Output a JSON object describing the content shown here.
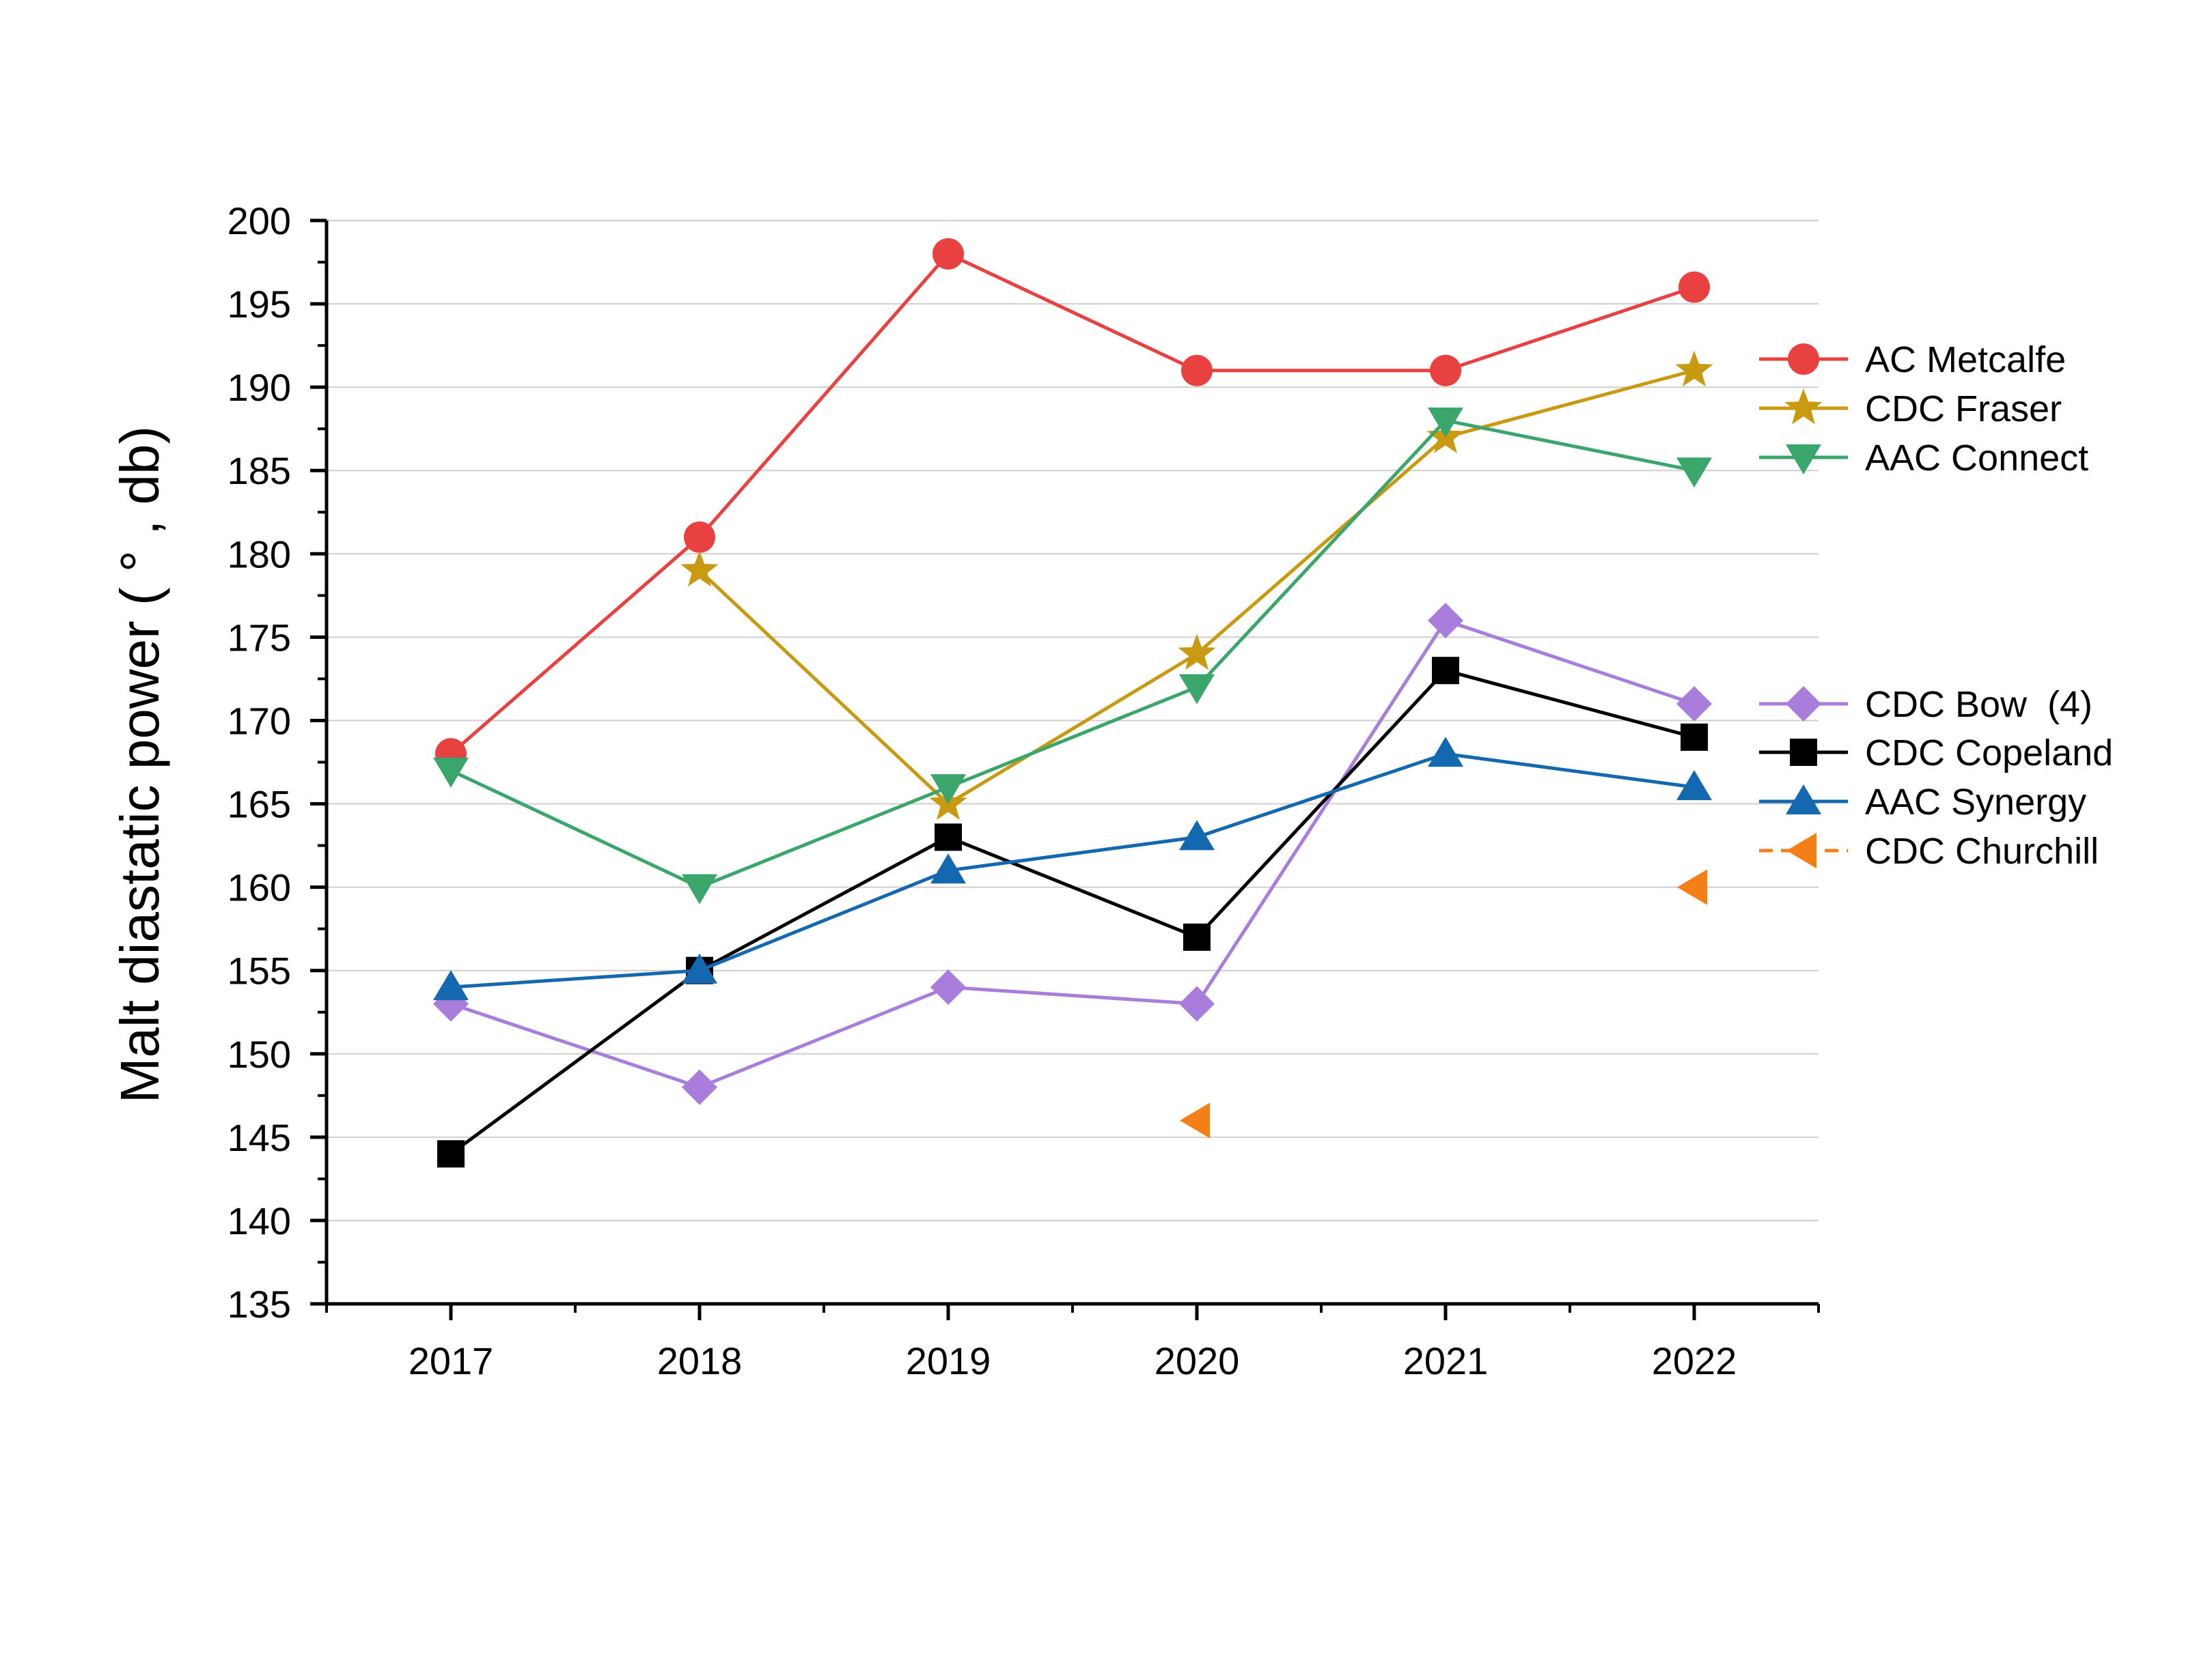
{
  "chart_data": {
    "type": "line",
    "title": "",
    "xlabel": "",
    "ylabel": "Malt diastatic power ( ° , db)",
    "categories": [
      "2017",
      "2018",
      "2019",
      "2020",
      "2021",
      "2022"
    ],
    "ylim": [
      135,
      200
    ],
    "yticks": [
      135,
      140,
      145,
      150,
      155,
      160,
      165,
      170,
      175,
      180,
      185,
      190,
      195,
      200
    ],
    "grid": "horizontal",
    "legend_position": "right",
    "series": [
      {
        "name": "AC Metcalfe",
        "color": "#e8413f",
        "marker": "circle",
        "line": "solid",
        "values": [
          168,
          181,
          198,
          191,
          191,
          196
        ]
      },
      {
        "name": "CDC Fraser",
        "color": "#c9990f",
        "marker": "star",
        "line": "solid",
        "values": [
          null,
          179,
          165,
          174,
          187,
          191
        ]
      },
      {
        "name": "AAC Connect",
        "color": "#3aa66b",
        "marker": "triangle-down",
        "line": "solid",
        "values": [
          167,
          160,
          166,
          172,
          188,
          185
        ]
      },
      {
        "name": "CDC Bow  (4)",
        "color": "#a97ddb",
        "marker": "diamond",
        "line": "solid",
        "values": [
          153,
          148,
          154,
          153,
          176,
          171
        ]
      },
      {
        "name": "CDC Copeland",
        "color": "#000000",
        "marker": "square",
        "line": "solid",
        "values": [
          144,
          155,
          163,
          157,
          173,
          169
        ]
      },
      {
        "name": "AAC Synergy",
        "color": "#1468b0",
        "marker": "triangle-up",
        "line": "solid",
        "values": [
          154,
          155,
          161,
          163,
          168,
          166
        ]
      },
      {
        "name": "CDC Churchill",
        "color": "#f57f17",
        "marker": "triangle-left",
        "line": "dashed",
        "values": [
          null,
          null,
          null,
          146,
          null,
          160
        ]
      }
    ]
  }
}
